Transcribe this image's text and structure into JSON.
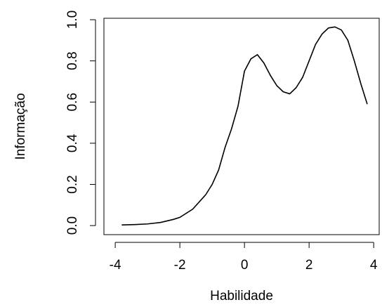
{
  "chart_data": {
    "type": "line",
    "xlabel": "Habilidade",
    "ylabel": "Informação",
    "x": [
      -3.8,
      -3.4,
      -3.0,
      -2.6,
      -2.2,
      -2.0,
      -1.6,
      -1.2,
      -1.0,
      -0.8,
      -0.6,
      -0.4,
      -0.2,
      0.0,
      0.2,
      0.4,
      0.6,
      0.8,
      1.0,
      1.2,
      1.4,
      1.6,
      1.8,
      2.0,
      2.2,
      2.4,
      2.6,
      2.8,
      3.0,
      3.2,
      3.4,
      3.6,
      3.8
    ],
    "values": [
      0.003,
      0.005,
      0.008,
      0.015,
      0.03,
      0.04,
      0.08,
      0.15,
      0.2,
      0.27,
      0.38,
      0.47,
      0.58,
      0.75,
      0.81,
      0.83,
      0.79,
      0.73,
      0.68,
      0.65,
      0.64,
      0.67,
      0.72,
      0.8,
      0.88,
      0.93,
      0.96,
      0.965,
      0.95,
      0.9,
      0.8,
      0.69,
      0.59
    ],
    "color": "#000000",
    "xlim": [
      -4.35,
      4.17
    ],
    "xticks": [
      -4,
      -2,
      0,
      2,
      4
    ],
    "ylim": [
      -0.044,
      1.007
    ],
    "yticks": [
      {
        "value": 0,
        "label": "0.0"
      },
      0.2,
      0.4,
      0.6,
      0.8,
      {
        "value": 1,
        "label": "1.0"
      }
    ]
  }
}
